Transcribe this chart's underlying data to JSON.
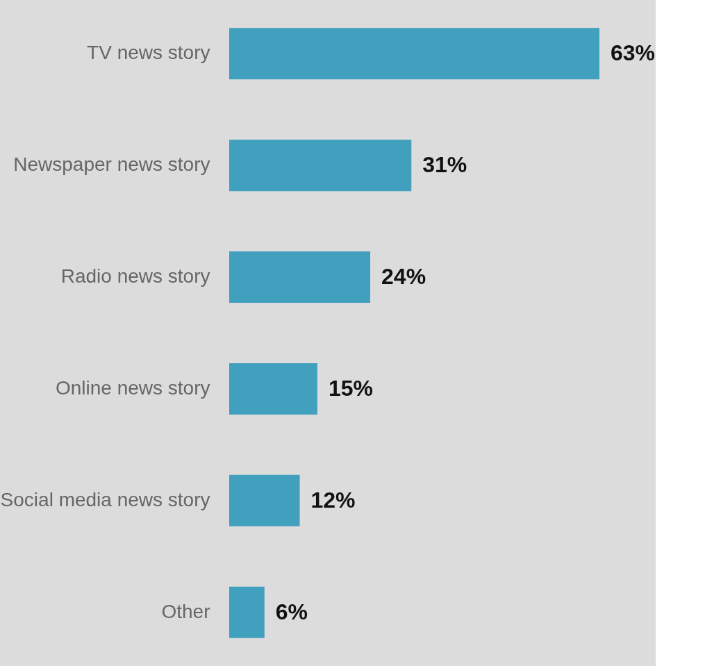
{
  "chart_data": {
    "type": "bar",
    "orientation": "horizontal",
    "categories": [
      "TV news story",
      "Newspaper news story",
      "Radio news story",
      "Online news story",
      "Social media news story",
      "Other"
    ],
    "values": [
      63,
      31,
      24,
      15,
      12,
      6
    ],
    "value_labels": [
      "63%",
      "31%",
      "24%",
      "15%",
      "12%",
      "6%"
    ],
    "color": "#42a0bf"
  }
}
